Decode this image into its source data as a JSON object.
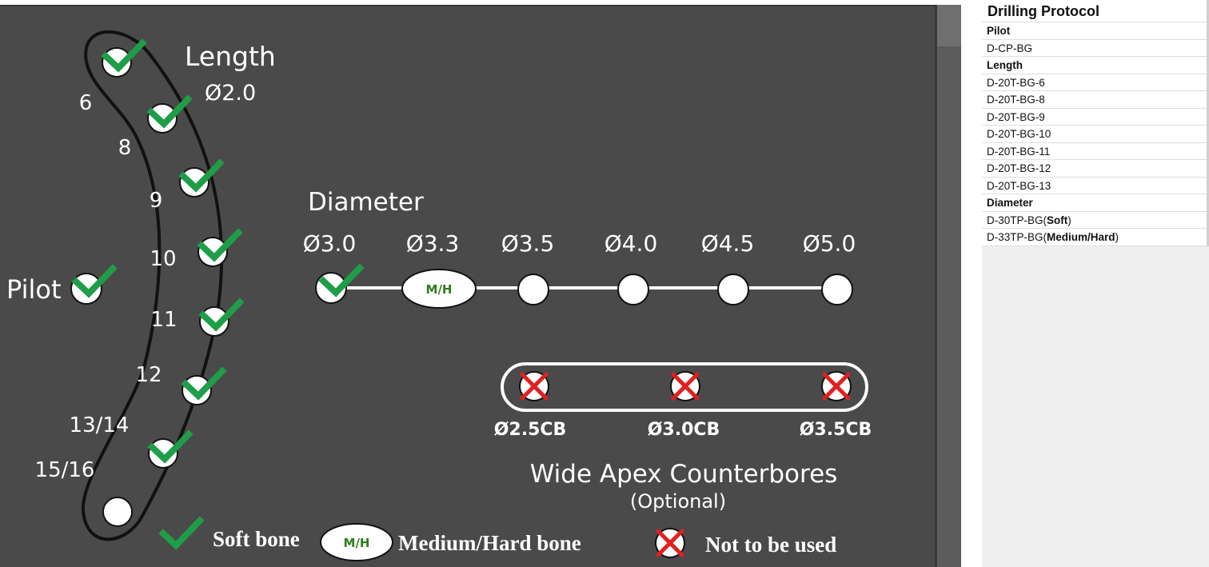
{
  "window": {
    "colors": {
      "panel": "#4a4a4a",
      "check": "#1f9d48",
      "cross": "#e02020",
      "mh_text": "#2e7d1f",
      "white": "#ffffff"
    }
  },
  "diagram": {
    "length": {
      "title": "Length",
      "subtitle": "Ø2.0",
      "steps": [
        {
          "label": "6",
          "status": "soft",
          "icon": "check-icon"
        },
        {
          "label": "8",
          "status": "soft",
          "icon": "check-icon"
        },
        {
          "label": "9",
          "status": "soft",
          "icon": "check-icon"
        },
        {
          "label": "10",
          "status": "soft",
          "icon": "check-icon"
        },
        {
          "label": "11",
          "status": "soft",
          "icon": "check-icon"
        },
        {
          "label": "12",
          "status": "soft",
          "icon": "check-icon"
        },
        {
          "label": "13/14",
          "status": "soft",
          "icon": "check-icon"
        },
        {
          "label": "15/16",
          "status": "none",
          "icon": "circle-icon"
        }
      ]
    },
    "pilot": {
      "label": "Pilot",
      "status": "soft",
      "icon": "check-icon"
    },
    "diameter": {
      "title": "Diameter",
      "steps": [
        {
          "label": "Ø3.0",
          "status": "soft"
        },
        {
          "label": "Ø3.3",
          "status": "medium-hard",
          "badge": "M/H"
        },
        {
          "label": "Ø3.5",
          "status": "none"
        },
        {
          "label": "Ø4.0",
          "status": "none"
        },
        {
          "label": "Ø4.5",
          "status": "none"
        },
        {
          "label": "Ø5.0",
          "status": "none"
        }
      ]
    },
    "counterbores": {
      "title": "Wide Apex Counterbores",
      "subtitle": "(Optional)",
      "items": [
        {
          "label": "Ø2.5CB",
          "status": "not-used",
          "icon": "cross-icon"
        },
        {
          "label": "Ø3.0CB",
          "status": "not-used",
          "icon": "cross-icon"
        },
        {
          "label": "Ø3.5CB",
          "status": "not-used",
          "icon": "cross-icon"
        }
      ]
    },
    "legend": {
      "soft": "Soft bone",
      "mh_badge": "M/H",
      "medium_hard": "Medium/Hard bone",
      "not_used": "Not to be used"
    }
  },
  "sheet": {
    "title": "Drilling Protocol",
    "rows": [
      {
        "text": "Pilot",
        "header": true
      },
      {
        "text": "D-CP-BG"
      },
      {
        "text": "Length",
        "header": true
      },
      {
        "text": "D-20T-BG-6"
      },
      {
        "text": "D-20T-BG-8"
      },
      {
        "text": "D-20T-BG-9"
      },
      {
        "text": "D-20T-BG-10"
      },
      {
        "text": "D-20T-BG-11"
      },
      {
        "text": "D-20T-BG-12"
      },
      {
        "text": "D-20T-BG-13"
      },
      {
        "text": "Diameter",
        "header": true
      },
      {
        "prefix": "D-30TP-BG(",
        "bold": "Soft",
        "suffix": ")"
      },
      {
        "prefix": "D-33TP-BG(",
        "bold": "Medium/Hard",
        "suffix": ")"
      }
    ]
  }
}
